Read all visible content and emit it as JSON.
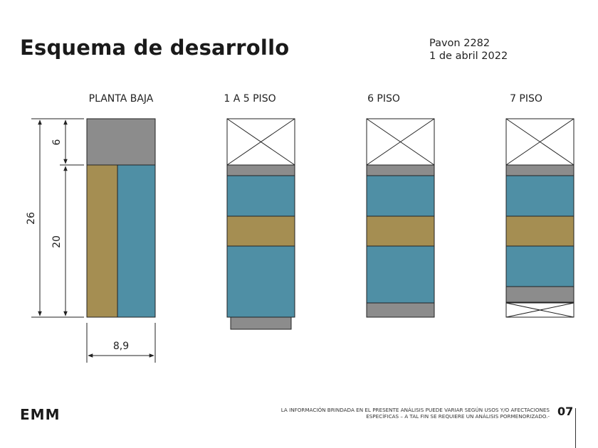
{
  "header": {
    "title": "Esquema de desarrollo",
    "address": "Pavon 2282",
    "date": "1 de abril 2022"
  },
  "colors": {
    "gray": "#8c8c8c",
    "blue": "#4f8fa5",
    "ochre": "#a58e52",
    "stroke": "#222222"
  },
  "columns": [
    {
      "label": "PLANTA BAJA"
    },
    {
      "label": "1 A 5 PISO"
    },
    {
      "label": "6 PISO"
    },
    {
      "label": "7 PISO"
    }
  ],
  "dimensions": {
    "total_height": "26",
    "top_segment": "6",
    "lower_segment": "20",
    "width": "8,9"
  },
  "footer": {
    "logo": "EMM",
    "disclaimer_line1": "LA INFORMACIÓN BRINDADA EN EL PRESENTE ANÁLISIS PUEDE VARIAR SEGÚN USOS Y/O AFECTACIONES",
    "disclaimer_line2": "ESPECÍFICAS – A TAL FIN SE REQUIERE UN ANÁLISIS PORMENORIZADO.-",
    "page_number": "07"
  }
}
